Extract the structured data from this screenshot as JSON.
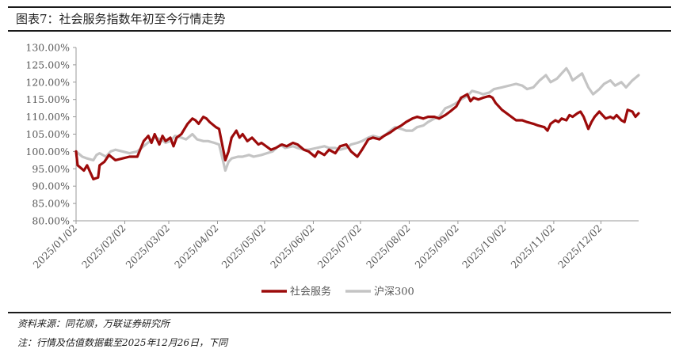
{
  "header": {
    "title": "图表7：社会服务指数年初至今行情走势"
  },
  "footer": {
    "source": "资料来源：同花顺，万联证券研究所",
    "note": "注：行情及估值数据截至2025年12月26日，下同"
  },
  "colors": {
    "series1": "#9c0a0a",
    "series2": "#c4c4c4",
    "axis": "#999999",
    "text": "#595959"
  },
  "chart_data": {
    "type": "line",
    "title": "",
    "xlabel": "",
    "ylabel": "",
    "ylim": [
      0.8,
      1.3
    ],
    "y_ticks": [
      "130.00%",
      "125.00%",
      "120.00%",
      "115.00%",
      "110.00%",
      "105.00%",
      "100.00%",
      "95.00%",
      "90.00%",
      "85.00%",
      "80.00%"
    ],
    "x_ticks": [
      "2025/01/02",
      "2025/02/02",
      "2025/03/02",
      "2025/04/02",
      "2025/05/02",
      "2025/06/02",
      "2025/07/02",
      "2025/08/02",
      "2025/09/02",
      "2025/10/02",
      "2025/11/02",
      "2025/12/02"
    ],
    "x_range": [
      "2025-01-02",
      "2025-12-26"
    ],
    "legend_position": "bottom-center",
    "grid": false,
    "series": [
      {
        "name": "社会服务",
        "color": "#9c0a0a",
        "points": [
          [
            "2025-01-02",
            1.0
          ],
          [
            "2025-01-03",
            0.96
          ],
          [
            "2025-01-07",
            0.945
          ],
          [
            "2025-01-09",
            0.96
          ],
          [
            "2025-01-13",
            0.92
          ],
          [
            "2025-01-16",
            0.925
          ],
          [
            "2025-01-17",
            0.96
          ],
          [
            "2025-01-20",
            0.97
          ],
          [
            "2025-01-23",
            0.99
          ],
          [
            "2025-01-27",
            0.975
          ],
          [
            "2025-02-05",
            0.985
          ],
          [
            "2025-02-10",
            0.985
          ],
          [
            "2025-02-14",
            1.03
          ],
          [
            "2025-02-17",
            1.045
          ],
          [
            "2025-02-19",
            1.025
          ],
          [
            "2025-02-21",
            1.05
          ],
          [
            "2025-02-24",
            1.02
          ],
          [
            "2025-02-26",
            1.045
          ],
          [
            "2025-02-28",
            1.03
          ],
          [
            "2025-03-03",
            1.04
          ],
          [
            "2025-03-05",
            1.015
          ],
          [
            "2025-03-07",
            1.04
          ],
          [
            "2025-03-10",
            1.05
          ],
          [
            "2025-03-12",
            1.065
          ],
          [
            "2025-03-14",
            1.08
          ],
          [
            "2025-03-17",
            1.095
          ],
          [
            "2025-03-19",
            1.09
          ],
          [
            "2025-03-21",
            1.08
          ],
          [
            "2025-03-24",
            1.1
          ],
          [
            "2025-03-26",
            1.095
          ],
          [
            "2025-03-28",
            1.085
          ],
          [
            "2025-04-01",
            1.07
          ],
          [
            "2025-04-03",
            1.065
          ],
          [
            "2025-04-07",
            0.975
          ],
          [
            "2025-04-09",
            1.0
          ],
          [
            "2025-04-11",
            1.04
          ],
          [
            "2025-04-14",
            1.06
          ],
          [
            "2025-04-16",
            1.04
          ],
          [
            "2025-04-18",
            1.05
          ],
          [
            "2025-04-21",
            1.03
          ],
          [
            "2025-04-24",
            1.04
          ],
          [
            "2025-04-28",
            1.02
          ],
          [
            "2025-04-30",
            1.025
          ],
          [
            "2025-05-06",
            1.005
          ],
          [
            "2025-05-09",
            1.01
          ],
          [
            "2025-05-13",
            1.02
          ],
          [
            "2025-05-16",
            1.015
          ],
          [
            "2025-05-20",
            1.025
          ],
          [
            "2025-05-23",
            1.02
          ],
          [
            "2025-05-27",
            1.005
          ],
          [
            "2025-05-30",
            1.0
          ],
          [
            "2025-06-03",
            0.985
          ],
          [
            "2025-06-05",
            1.0
          ],
          [
            "2025-06-09",
            0.99
          ],
          [
            "2025-06-12",
            1.005
          ],
          [
            "2025-06-16",
            0.995
          ],
          [
            "2025-06-19",
            1.015
          ],
          [
            "2025-06-23",
            1.02
          ],
          [
            "2025-06-26",
            1.0
          ],
          [
            "2025-06-30",
            0.985
          ],
          [
            "2025-07-03",
            1.005
          ],
          [
            "2025-07-07",
            1.035
          ],
          [
            "2025-07-10",
            1.04
          ],
          [
            "2025-07-14",
            1.035
          ],
          [
            "2025-07-17",
            1.045
          ],
          [
            "2025-07-21",
            1.055
          ],
          [
            "2025-07-24",
            1.065
          ],
          [
            "2025-07-28",
            1.075
          ],
          [
            "2025-07-31",
            1.085
          ],
          [
            "2025-08-04",
            1.095
          ],
          [
            "2025-08-07",
            1.1
          ],
          [
            "2025-08-11",
            1.095
          ],
          [
            "2025-08-14",
            1.1
          ],
          [
            "2025-08-18",
            1.1
          ],
          [
            "2025-08-21",
            1.095
          ],
          [
            "2025-08-25",
            1.105
          ],
          [
            "2025-08-28",
            1.115
          ],
          [
            "2025-09-01",
            1.13
          ],
          [
            "2025-09-04",
            1.155
          ],
          [
            "2025-09-08",
            1.165
          ],
          [
            "2025-09-10",
            1.145
          ],
          [
            "2025-09-12",
            1.155
          ],
          [
            "2025-09-15",
            1.15
          ],
          [
            "2025-09-18",
            1.155
          ],
          [
            "2025-09-22",
            1.16
          ],
          [
            "2025-09-24",
            1.155
          ],
          [
            "2025-09-26",
            1.14
          ],
          [
            "2025-09-30",
            1.12
          ],
          [
            "2025-10-09",
            1.09
          ],
          [
            "2025-10-13",
            1.09
          ],
          [
            "2025-10-16",
            1.085
          ],
          [
            "2025-10-20",
            1.08
          ],
          [
            "2025-10-23",
            1.075
          ],
          [
            "2025-10-27",
            1.07
          ],
          [
            "2025-10-29",
            1.06
          ],
          [
            "2025-10-31",
            1.08
          ],
          [
            "2025-11-03",
            1.09
          ],
          [
            "2025-11-05",
            1.085
          ],
          [
            "2025-11-07",
            1.095
          ],
          [
            "2025-11-10",
            1.09
          ],
          [
            "2025-11-12",
            1.105
          ],
          [
            "2025-11-14",
            1.1
          ],
          [
            "2025-11-17",
            1.11
          ],
          [
            "2025-11-19",
            1.115
          ],
          [
            "2025-11-21",
            1.1
          ],
          [
            "2025-11-24",
            1.065
          ],
          [
            "2025-11-26",
            1.085
          ],
          [
            "2025-11-28",
            1.1
          ],
          [
            "2025-12-01",
            1.115
          ],
          [
            "2025-12-03",
            1.105
          ],
          [
            "2025-12-05",
            1.095
          ],
          [
            "2025-12-08",
            1.1
          ],
          [
            "2025-12-10",
            1.095
          ],
          [
            "2025-12-12",
            1.105
          ],
          [
            "2025-12-15",
            1.09
          ],
          [
            "2025-12-17",
            1.085
          ],
          [
            "2025-12-19",
            1.12
          ],
          [
            "2025-12-22",
            1.115
          ],
          [
            "2025-12-24",
            1.1
          ],
          [
            "2025-12-26",
            1.11
          ]
        ]
      },
      {
        "name": "沪深300",
        "color": "#c4c4c4",
        "points": [
          [
            "2025-01-02",
            1.0
          ],
          [
            "2025-01-06",
            0.985
          ],
          [
            "2025-01-09",
            0.98
          ],
          [
            "2025-01-13",
            0.975
          ],
          [
            "2025-01-15",
            0.99
          ],
          [
            "2025-01-17",
            0.995
          ],
          [
            "2025-01-21",
            0.985
          ],
          [
            "2025-01-24",
            1.0
          ],
          [
            "2025-01-27",
            1.005
          ],
          [
            "2025-02-05",
            0.995
          ],
          [
            "2025-02-10",
            1.0
          ],
          [
            "2025-02-14",
            1.015
          ],
          [
            "2025-02-18",
            1.03
          ],
          [
            "2025-02-21",
            1.04
          ],
          [
            "2025-02-25",
            1.035
          ],
          [
            "2025-02-28",
            1.025
          ],
          [
            "2025-03-03",
            1.03
          ],
          [
            "2025-03-06",
            1.045
          ],
          [
            "2025-03-10",
            1.04
          ],
          [
            "2025-03-13",
            1.035
          ],
          [
            "2025-03-17",
            1.05
          ],
          [
            "2025-03-20",
            1.035
          ],
          [
            "2025-03-24",
            1.03
          ],
          [
            "2025-03-27",
            1.03
          ],
          [
            "2025-03-31",
            1.025
          ],
          [
            "2025-04-03",
            1.02
          ],
          [
            "2025-04-07",
            0.945
          ],
          [
            "2025-04-09",
            0.97
          ],
          [
            "2025-04-11",
            0.98
          ],
          [
            "2025-04-15",
            0.985
          ],
          [
            "2025-04-18",
            0.985
          ],
          [
            "2025-04-22",
            0.99
          ],
          [
            "2025-04-25",
            0.985
          ],
          [
            "2025-04-30",
            0.99
          ],
          [
            "2025-05-07",
            1.0
          ],
          [
            "2025-05-12",
            1.02
          ],
          [
            "2025-05-15",
            1.01
          ],
          [
            "2025-05-20",
            1.015
          ],
          [
            "2025-05-23",
            1.01
          ],
          [
            "2025-05-27",
            1.005
          ],
          [
            "2025-05-30",
            1.005
          ],
          [
            "2025-06-04",
            1.01
          ],
          [
            "2025-06-09",
            1.015
          ],
          [
            "2025-06-12",
            1.01
          ],
          [
            "2025-06-16",
            1.01
          ],
          [
            "2025-06-19",
            1.005
          ],
          [
            "2025-06-23",
            1.01
          ],
          [
            "2025-06-26",
            1.02
          ],
          [
            "2025-06-30",
            1.025
          ],
          [
            "2025-07-03",
            1.03
          ],
          [
            "2025-07-07",
            1.04
          ],
          [
            "2025-07-10",
            1.045
          ],
          [
            "2025-07-14",
            1.04
          ],
          [
            "2025-07-17",
            1.045
          ],
          [
            "2025-07-21",
            1.06
          ],
          [
            "2025-07-24",
            1.07
          ],
          [
            "2025-07-28",
            1.065
          ],
          [
            "2025-07-31",
            1.06
          ],
          [
            "2025-08-04",
            1.06
          ],
          [
            "2025-08-07",
            1.07
          ],
          [
            "2025-08-11",
            1.075
          ],
          [
            "2025-08-14",
            1.085
          ],
          [
            "2025-08-18",
            1.095
          ],
          [
            "2025-08-21",
            1.1
          ],
          [
            "2025-08-25",
            1.125
          ],
          [
            "2025-08-28",
            1.13
          ],
          [
            "2025-09-01",
            1.14
          ],
          [
            "2025-09-04",
            1.15
          ],
          [
            "2025-09-08",
            1.16
          ],
          [
            "2025-09-11",
            1.175
          ],
          [
            "2025-09-15",
            1.17
          ],
          [
            "2025-09-18",
            1.165
          ],
          [
            "2025-09-22",
            1.17
          ],
          [
            "2025-09-25",
            1.18
          ],
          [
            "2025-09-30",
            1.185
          ],
          [
            "2025-10-09",
            1.195
          ],
          [
            "2025-10-13",
            1.19
          ],
          [
            "2025-10-16",
            1.18
          ],
          [
            "2025-10-20",
            1.185
          ],
          [
            "2025-10-24",
            1.205
          ],
          [
            "2025-10-28",
            1.22
          ],
          [
            "2025-10-31",
            1.2
          ],
          [
            "2025-11-04",
            1.21
          ],
          [
            "2025-11-07",
            1.225
          ],
          [
            "2025-11-10",
            1.24
          ],
          [
            "2025-11-12",
            1.225
          ],
          [
            "2025-11-14",
            1.205
          ],
          [
            "2025-11-17",
            1.215
          ],
          [
            "2025-11-20",
            1.225
          ],
          [
            "2025-11-24",
            1.185
          ],
          [
            "2025-11-27",
            1.165
          ],
          [
            "2025-12-01",
            1.18
          ],
          [
            "2025-12-04",
            1.195
          ],
          [
            "2025-12-08",
            1.205
          ],
          [
            "2025-12-11",
            1.19
          ],
          [
            "2025-12-15",
            1.2
          ],
          [
            "2025-12-18",
            1.185
          ],
          [
            "2025-12-22",
            1.205
          ],
          [
            "2025-12-26",
            1.22
          ]
        ]
      }
    ]
  }
}
